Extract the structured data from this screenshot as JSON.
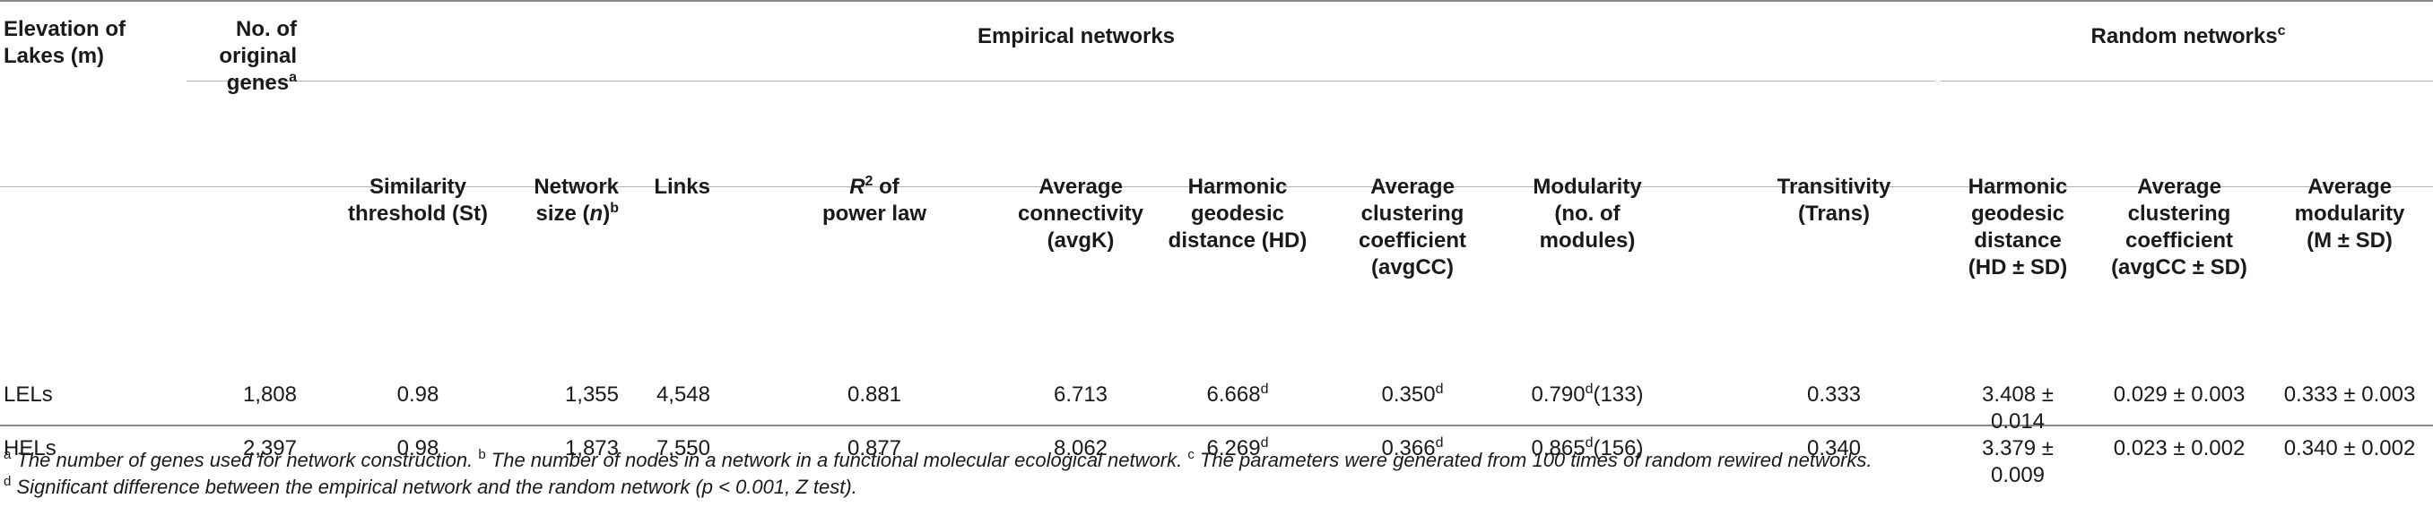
{
  "headers": {
    "elevation": [
      "Elevation of",
      "Lakes (m)"
    ],
    "original_genes": [
      "No. of",
      "original",
      "genes"
    ],
    "original_genes_sup": "a",
    "empirical_group": "Empirical networks",
    "random_group": "Random networks",
    "random_group_sup": "c",
    "st": [
      "Similarity",
      "threshold (St)"
    ],
    "netsize": [
      "Network",
      "size ("
    ],
    "netsize_var": "n",
    "netsize_close": ")",
    "netsize_sup": "b",
    "links": "Links",
    "r2": [
      "R",
      "2",
      " of",
      "power law"
    ],
    "avgk": [
      "Average",
      "connectivity",
      "(avgK)"
    ],
    "hd": [
      "Harmonic",
      "geodesic",
      "distance (HD)"
    ],
    "avgcc": [
      "Average",
      "clustering",
      "coefficient",
      "(avgCC)"
    ],
    "modularity": [
      "Modularity",
      "(no. of",
      "modules)"
    ],
    "trans": [
      "Transitivity",
      "(Trans)"
    ],
    "rhd": [
      "Harmonic",
      "geodesic",
      "distance",
      "(HD ± SD)"
    ],
    "ravgcc": [
      "Average",
      "clustering",
      "coefficient",
      "(avgCC ± SD)"
    ],
    "rmod": [
      "Average",
      "modularity",
      "(M ± SD)"
    ]
  },
  "rows": [
    {
      "lake": "LELs",
      "genes": "1,808",
      "st": "0.98",
      "size": "1,355",
      "links": "4,548",
      "r2": "0.881",
      "avgk": "6.713",
      "hd": "6.668",
      "hd_sup": "d",
      "avgcc": "0.350",
      "avgcc_sup": "d",
      "mod": "0.790",
      "mod_sup": "d",
      "mod_n": "(133)",
      "trans": "0.333",
      "rhd": "3.408 ± 0.014",
      "ravgcc": "0.029 ± 0.003",
      "rmod": "0.333 ± 0.003"
    },
    {
      "lake": "HELs",
      "genes": "2,397",
      "st": "0.98",
      "size": "1,873",
      "links": "7,550",
      "r2": "0.877",
      "avgk": "8.062",
      "hd": "6.269",
      "hd_sup": "d",
      "avgcc": "0.366",
      "avgcc_sup": "d",
      "mod": "0.865",
      "mod_sup": "d",
      "mod_n": "(156)",
      "trans": "0.340",
      "rhd": "3.379 ± 0.009",
      "ravgcc": "0.023 ± 0.002",
      "rmod": "0.340 ± 0.002"
    }
  ],
  "footnotes": {
    "a_mark": "a",
    "a_text": "The number of genes used for network construction.",
    "b_mark": "b",
    "b_text": "The number of nodes in a network in a functional molecular ecological network.",
    "c_mark": "c",
    "c_text": "The parameters were generated from 100 times of random rewired networks.",
    "d_mark": "d",
    "d_text": "Significant difference between the empirical network and the random network (p < 0.001, Z test)."
  }
}
